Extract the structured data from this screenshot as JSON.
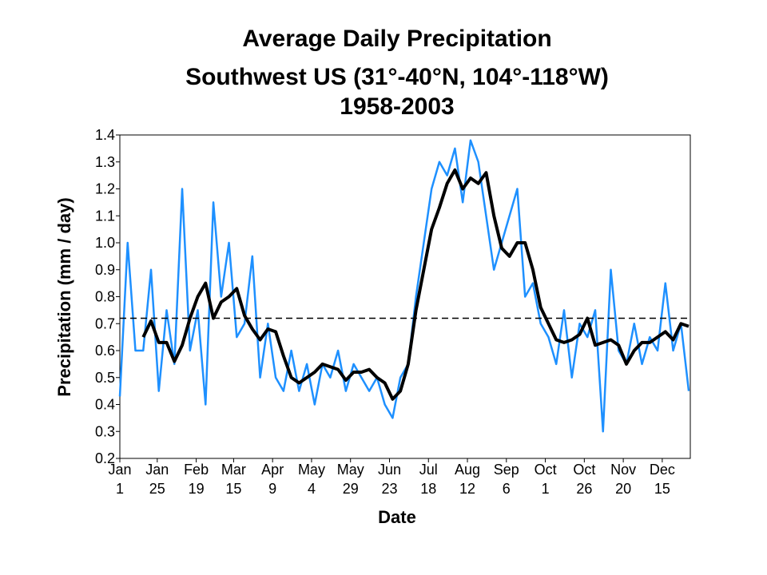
{
  "chart_data": {
    "type": "line",
    "title": [
      "Average Daily Precipitation",
      "Southwest US (31°-40°N, 104°-118°W)",
      "1958-2003"
    ],
    "x_label": "Date",
    "y_label": "Precipitation (mm / day)",
    "xlim": [
      1,
      367
    ],
    "xticks": [
      {
        "value": 1,
        "label": "Jan\n1"
      },
      {
        "value": 25,
        "label": "Jan\n25"
      },
      {
        "value": 50,
        "label": "Feb\n19"
      },
      {
        "value": 74,
        "label": "Mar\n15"
      },
      {
        "value": 99,
        "label": "Apr\n9"
      },
      {
        "value": 124,
        "label": "May\n4"
      },
      {
        "value": 149,
        "label": "May\n29"
      },
      {
        "value": 174,
        "label": "Jun\n23"
      },
      {
        "value": 199,
        "label": "Jul\n18"
      },
      {
        "value": 224,
        "label": "Aug\n12"
      },
      {
        "value": 249,
        "label": "Sep\n6"
      },
      {
        "value": 274,
        "label": "Oct\n1"
      },
      {
        "value": 299,
        "label": "Oct\n26"
      },
      {
        "value": 324,
        "label": "Nov\n20"
      },
      {
        "value": 349,
        "label": "Dec\n15"
      }
    ],
    "ylim": [
      0.2,
      1.4
    ],
    "yticks": [
      0.2,
      0.3,
      0.4,
      0.5,
      0.6,
      0.7,
      0.8,
      0.9,
      {
        "value": 1.0,
        "label": "1.0"
      },
      1.1,
      1.2,
      1.3,
      1.4
    ],
    "reference_line": {
      "value": 0.72,
      "color": "#000000",
      "dashed": true
    },
    "series": [
      {
        "color": "#1e90ff",
        "width": 2.5,
        "x": [
          1,
          6,
          11,
          16,
          21,
          26,
          31,
          36,
          41,
          46,
          51,
          56,
          61,
          66,
          71,
          76,
          81,
          86,
          91,
          96,
          101,
          106,
          111,
          116,
          121,
          126,
          131,
          136,
          141,
          146,
          151,
          156,
          161,
          166,
          171,
          176,
          181,
          186,
          191,
          196,
          201,
          206,
          211,
          216,
          221,
          226,
          231,
          236,
          241,
          246,
          251,
          256,
          261,
          266,
          271,
          276,
          281,
          286,
          291,
          296,
          301,
          306,
          311,
          316,
          321,
          326,
          331,
          336,
          341,
          346,
          351,
          356,
          361,
          366
        ],
        "values": [
          0.43,
          1.0,
          0.6,
          0.6,
          0.9,
          0.45,
          0.75,
          0.55,
          1.2,
          0.6,
          0.75,
          0.4,
          1.15,
          0.8,
          1.0,
          0.65,
          0.7,
          0.95,
          0.5,
          0.7,
          0.5,
          0.45,
          0.6,
          0.45,
          0.55,
          0.4,
          0.55,
          0.5,
          0.6,
          0.45,
          0.55,
          0.5,
          0.45,
          0.5,
          0.4,
          0.35,
          0.5,
          0.55,
          0.8,
          1.0,
          1.2,
          1.3,
          1.25,
          1.35,
          1.15,
          1.38,
          1.3,
          1.1,
          0.9,
          1.0,
          1.1,
          1.2,
          0.8,
          0.85,
          0.7,
          0.65,
          0.55,
          0.75,
          0.5,
          0.7,
          0.65,
          0.75,
          0.3,
          0.9,
          0.6,
          0.55,
          0.7,
          0.55,
          0.65,
          0.6,
          0.85,
          0.6,
          0.7,
          0.45
        ]
      },
      {
        "color": "#000000",
        "width": 4,
        "x": [
          16,
          21,
          26,
          31,
          36,
          41,
          46,
          51,
          56,
          61,
          66,
          71,
          76,
          81,
          86,
          91,
          96,
          101,
          106,
          111,
          116,
          121,
          126,
          131,
          136,
          141,
          146,
          151,
          156,
          161,
          166,
          171,
          176,
          181,
          186,
          191,
          196,
          201,
          206,
          211,
          216,
          221,
          226,
          231,
          236,
          241,
          246,
          251,
          256,
          261,
          266,
          271,
          276,
          281,
          286,
          291,
          296,
          301,
          306,
          311,
          316,
          321,
          326,
          331,
          336,
          341,
          346,
          351,
          356,
          361,
          366
        ],
        "values": [
          0.65,
          0.71,
          0.63,
          0.63,
          0.56,
          0.62,
          0.72,
          0.8,
          0.85,
          0.72,
          0.78,
          0.8,
          0.83,
          0.73,
          0.68,
          0.64,
          0.68,
          0.67,
          0.58,
          0.5,
          0.48,
          0.5,
          0.52,
          0.55,
          0.54,
          0.53,
          0.49,
          0.52,
          0.52,
          0.53,
          0.5,
          0.48,
          0.42,
          0.45,
          0.55,
          0.75,
          0.9,
          1.05,
          1.13,
          1.22,
          1.27,
          1.2,
          1.24,
          1.22,
          1.26,
          1.1,
          0.98,
          0.95,
          1.0,
          1.0,
          0.9,
          0.76,
          0.7,
          0.64,
          0.63,
          0.64,
          0.66,
          0.72,
          0.62,
          0.63,
          0.64,
          0.62,
          0.55,
          0.6,
          0.63,
          0.63,
          0.65,
          0.67,
          0.64,
          0.7,
          0.69
        ]
      }
    ]
  }
}
